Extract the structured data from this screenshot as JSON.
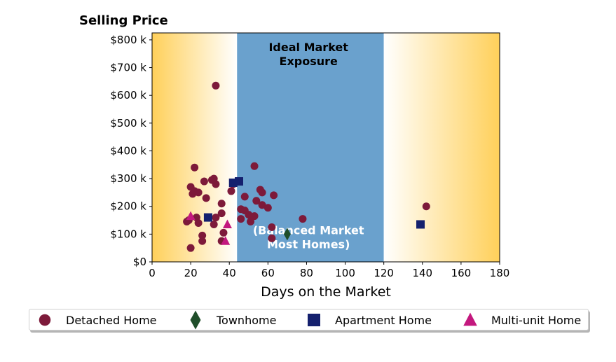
{
  "chart_data": {
    "type": "scatter",
    "title": "Selling Price",
    "xlabel": "Days on the Market",
    "ylabel": "",
    "xlim": [
      0,
      180
    ],
    "ylim": [
      0,
      825000
    ],
    "x_ticks": [
      0,
      20,
      40,
      60,
      80,
      100,
      120,
      140,
      160,
      180
    ],
    "y_ticks": [
      0,
      100000,
      200000,
      300000,
      400000,
      500000,
      600000,
      700000,
      800000
    ],
    "y_tick_labels": [
      "$0",
      "$100 k",
      "$200 k",
      "$300 k",
      "$400 k",
      "$500 k",
      "$600 k",
      "$700 k",
      "$800 k"
    ],
    "grid": false,
    "legend_position": "bottom",
    "background_zones": [
      {
        "x_start": 0,
        "x_end": 44,
        "style": "gradient",
        "color_edge": "#ffd05a",
        "color_inner": "#ffffff"
      },
      {
        "x_start": 44,
        "x_end": 120,
        "style": "solid",
        "color": "#6aa1cd"
      },
      {
        "x_start": 120,
        "x_end": 180,
        "style": "gradient",
        "color_edge": "#ffd05a",
        "color_inner": "#ffffff"
      }
    ],
    "annotations": [
      {
        "lines": [
          "Ideal Market",
          "Exposure"
        ],
        "x": 81,
        "y": 760000,
        "color": "#000000"
      },
      {
        "lines": [
          "(Balanced Market",
          "Most Homes)"
        ],
        "x": 81,
        "y": 100000,
        "color": "#ffffff"
      }
    ],
    "series": [
      {
        "name": "Detached Home",
        "marker": "circle",
        "color": "#7d1a3a",
        "points": [
          [
            18,
            145000
          ],
          [
            19,
            150000
          ],
          [
            20,
            270000
          ],
          [
            20,
            50000
          ],
          [
            21,
            245000
          ],
          [
            22,
            340000
          ],
          [
            22,
            255000
          ],
          [
            23,
            160000
          ],
          [
            24,
            250000
          ],
          [
            24,
            140000
          ],
          [
            26,
            95000
          ],
          [
            26,
            75000
          ],
          [
            27,
            290000
          ],
          [
            28,
            230000
          ],
          [
            31,
            295000
          ],
          [
            32,
            300000
          ],
          [
            32,
            135000
          ],
          [
            33,
            280000
          ],
          [
            33,
            160000
          ],
          [
            33,
            635000
          ],
          [
            36,
            210000
          ],
          [
            36,
            175000
          ],
          [
            36,
            75000
          ],
          [
            37,
            105000
          ],
          [
            41,
            255000
          ],
          [
            42,
            280000
          ],
          [
            46,
            190000
          ],
          [
            46,
            155000
          ],
          [
            48,
            235000
          ],
          [
            48,
            185000
          ],
          [
            50,
            170000
          ],
          [
            51,
            145000
          ],
          [
            53,
            345000
          ],
          [
            53,
            165000
          ],
          [
            54,
            220000
          ],
          [
            56,
            260000
          ],
          [
            57,
            205000
          ],
          [
            57,
            250000
          ],
          [
            60,
            195000
          ],
          [
            62,
            125000
          ],
          [
            62,
            85000
          ],
          [
            63,
            240000
          ],
          [
            78,
            155000
          ],
          [
            142,
            200000
          ]
        ]
      },
      {
        "name": "Townhome",
        "marker": "diamond",
        "color": "#1f4e2a",
        "points": [
          [
            70,
            100000
          ]
        ]
      },
      {
        "name": "Apartment Home",
        "marker": "square",
        "color": "#14206e",
        "points": [
          [
            29,
            160000
          ],
          [
            42,
            285000
          ],
          [
            45,
            290000
          ],
          [
            139,
            135000
          ]
        ]
      },
      {
        "name": "Multi-unit Home",
        "marker": "triangle",
        "color": "#c3187e",
        "points": [
          [
            20,
            165000
          ],
          [
            38,
            75000
          ],
          [
            39,
            135000
          ]
        ]
      }
    ]
  }
}
